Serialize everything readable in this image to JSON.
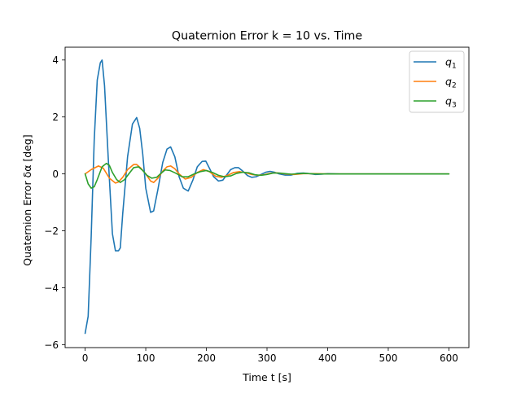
{
  "chart_data": {
    "type": "line",
    "title": "Quaternion Error k = 10 vs. Time",
    "xlabel": "Time t [s]",
    "ylabel": "Quaternion Error δα [deg]",
    "xlim": [
      -33,
      633
    ],
    "ylim": [
      -6.1,
      4.45
    ],
    "xticks": [
      0,
      100,
      200,
      300,
      400,
      500,
      600
    ],
    "yticks": [
      -6,
      -4,
      -2,
      0,
      2,
      4
    ],
    "ytick_labels": [
      "−6",
      "−4",
      "−2",
      "0",
      "2",
      "4"
    ],
    "grid": false,
    "legend_position": "upper right",
    "series": [
      {
        "name_base": "q",
        "name_sub": "1",
        "color": "#1f77b4",
        "x": [
          0,
          5,
          10,
          15,
          20,
          25,
          28,
          32,
          38,
          45,
          50,
          55,
          58,
          62,
          70,
          78,
          85,
          90,
          95,
          100,
          108,
          113,
          120,
          128,
          135,
          141,
          148,
          155,
          162,
          170,
          178,
          185,
          193,
          199,
          205,
          212,
          220,
          227,
          233,
          240,
          247,
          253,
          260,
          268,
          275,
          282,
          290,
          298,
          305,
          312,
          320,
          330,
          340,
          350,
          360,
          370,
          380,
          390,
          400,
          420,
          440,
          460,
          480,
          500,
          520,
          540,
          560,
          580,
          600
        ],
        "y": [
          -5.6,
          -5.0,
          -2.2,
          1.2,
          3.3,
          3.9,
          4.0,
          3.1,
          0.6,
          -2.1,
          -2.7,
          -2.7,
          -2.6,
          -1.4,
          0.6,
          1.75,
          1.98,
          1.6,
          0.7,
          -0.5,
          -1.35,
          -1.3,
          -0.55,
          0.4,
          0.87,
          0.95,
          0.6,
          -0.1,
          -0.5,
          -0.6,
          -0.2,
          0.25,
          0.44,
          0.45,
          0.2,
          -0.1,
          -0.25,
          -0.22,
          -0.05,
          0.15,
          0.22,
          0.22,
          0.1,
          -0.06,
          -0.12,
          -0.1,
          -0.02,
          0.06,
          0.09,
          0.06,
          0.0,
          -0.04,
          -0.04,
          0.02,
          0.03,
          0.01,
          -0.02,
          -0.01,
          0.01,
          0.0,
          0.0,
          0.0,
          0.0,
          0.0,
          0.0,
          0.0,
          0.0,
          0.0,
          0.0
        ]
      },
      {
        "name_base": "q",
        "name_sub": "2",
        "color": "#ff7f0e",
        "x": [
          0,
          10,
          22,
          30,
          40,
          50,
          55,
          62,
          70,
          80,
          85,
          92,
          100,
          108,
          113,
          120,
          128,
          135,
          141,
          148,
          155,
          165,
          175,
          185,
          195,
          205,
          215,
          225,
          235,
          245,
          255,
          265,
          275,
          285,
          295,
          305,
          315,
          330,
          345,
          360,
          380,
          400,
          430,
          460,
          500,
          550,
          600
        ],
        "y": [
          0.0,
          0.15,
          0.28,
          0.2,
          -0.15,
          -0.32,
          -0.28,
          -0.12,
          0.15,
          0.33,
          0.33,
          0.2,
          0.0,
          -0.25,
          -0.3,
          -0.15,
          0.1,
          0.25,
          0.28,
          0.18,
          0.0,
          -0.18,
          -0.12,
          0.05,
          0.15,
          0.08,
          -0.08,
          -0.12,
          -0.05,
          0.05,
          0.08,
          0.04,
          -0.02,
          -0.05,
          -0.03,
          0.02,
          0.04,
          0.0,
          -0.02,
          0.01,
          0.01,
          0.0,
          0.0,
          0.0,
          0.0,
          0.0,
          0.0
        ]
      },
      {
        "name_base": "q",
        "name_sub": "3",
        "color": "#2ca02c",
        "x": [
          0,
          5,
          10,
          15,
          20,
          28,
          35,
          40,
          45,
          52,
          58,
          65,
          72,
          80,
          88,
          95,
          102,
          110,
          118,
          125,
          132,
          140,
          150,
          160,
          170,
          180,
          190,
          200,
          210,
          220,
          230,
          240,
          250,
          260,
          270,
          280,
          290,
          300,
          310,
          320,
          340,
          360,
          380,
          400,
          430,
          460,
          500,
          550,
          600
        ],
        "y": [
          0.0,
          -0.35,
          -0.5,
          -0.45,
          -0.2,
          0.25,
          0.37,
          0.3,
          0.05,
          -0.2,
          -0.3,
          -0.2,
          0.0,
          0.22,
          0.25,
          0.12,
          -0.05,
          -0.15,
          -0.12,
          0.02,
          0.14,
          0.12,
          0.02,
          -0.1,
          -0.1,
          0.0,
          0.08,
          0.12,
          0.05,
          -0.05,
          -0.1,
          -0.07,
          0.02,
          0.06,
          0.04,
          -0.03,
          -0.05,
          -0.02,
          0.03,
          0.03,
          -0.01,
          0.02,
          0.0,
          0.0,
          0.0,
          0.0,
          0.0,
          0.0,
          0.0
        ]
      }
    ]
  }
}
